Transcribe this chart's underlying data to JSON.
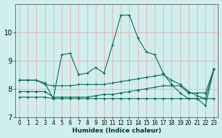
{
  "xlabel": "Humidex (Indice chaleur)",
  "ylabel": "",
  "xlim": [
    -0.5,
    23.5
  ],
  "ylim": [
    7,
    11
  ],
  "yticks": [
    7,
    8,
    9,
    10
  ],
  "xticks": [
    0,
    1,
    2,
    3,
    4,
    5,
    6,
    7,
    8,
    9,
    10,
    11,
    12,
    13,
    14,
    15,
    16,
    17,
    18,
    19,
    20,
    21,
    22,
    23
  ],
  "background_color": "#d0eeee",
  "grid_color": "#e8aaaa",
  "line_color": "#006655",
  "lines": [
    {
      "x": [
        0,
        1,
        2,
        3,
        4,
        5,
        6,
        7,
        8,
        9,
        10,
        11,
        12,
        13,
        14,
        15,
        16,
        17,
        18,
        19,
        20,
        21,
        22,
        23
      ],
      "y": [
        8.3,
        8.3,
        8.3,
        8.2,
        7.65,
        9.2,
        9.25,
        8.5,
        8.55,
        8.75,
        8.55,
        9.55,
        10.6,
        10.6,
        9.8,
        9.3,
        9.2,
        8.55,
        8.15,
        7.85,
        7.65,
        7.65,
        7.4,
        8.7
      ]
    },
    {
      "x": [
        0,
        1,
        2,
        3,
        4,
        5,
        6,
        7,
        8,
        9,
        10,
        11,
        12,
        13,
        14,
        15,
        16,
        17,
        18,
        19,
        20,
        21,
        22,
        23
      ],
      "y": [
        7.7,
        7.7,
        7.7,
        7.7,
        7.65,
        7.65,
        7.65,
        7.65,
        7.65,
        7.65,
        7.65,
        7.65,
        7.65,
        7.65,
        7.65,
        7.65,
        7.65,
        7.65,
        7.65,
        7.65,
        7.65,
        7.65,
        7.65,
        7.65
      ]
    },
    {
      "x": [
        0,
        1,
        2,
        3,
        4,
        5,
        6,
        7,
        8,
        9,
        10,
        11,
        12,
        13,
        14,
        15,
        16,
        17,
        18,
        19,
        20,
        21,
        22,
        23
      ],
      "y": [
        7.9,
        7.9,
        7.9,
        7.9,
        7.7,
        7.7,
        7.7,
        7.7,
        7.7,
        7.75,
        7.8,
        7.8,
        7.85,
        7.9,
        7.95,
        8.0,
        8.05,
        8.1,
        8.1,
        8.1,
        7.85,
        7.85,
        7.85,
        8.7
      ]
    },
    {
      "x": [
        0,
        1,
        2,
        3,
        4,
        5,
        6,
        7,
        8,
        9,
        10,
        11,
        12,
        13,
        14,
        15,
        16,
        17,
        18,
        19,
        20,
        21,
        22,
        23
      ],
      "y": [
        8.3,
        8.3,
        8.3,
        8.15,
        8.1,
        8.1,
        8.1,
        8.15,
        8.15,
        8.15,
        8.15,
        8.2,
        8.25,
        8.3,
        8.35,
        8.4,
        8.45,
        8.5,
        8.3,
        8.15,
        7.9,
        7.75,
        7.65,
        8.7
      ]
    }
  ]
}
